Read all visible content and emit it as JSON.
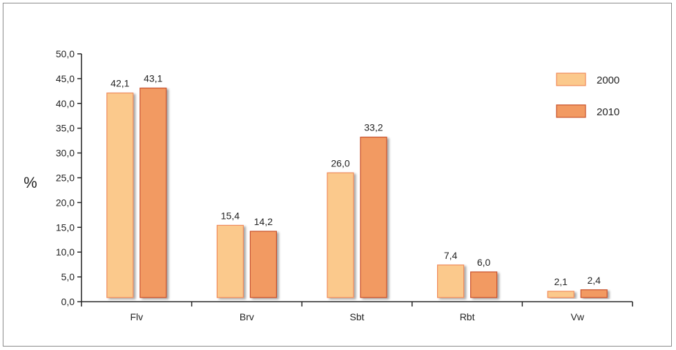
{
  "chart_data": {
    "type": "bar",
    "ylabel": "%",
    "xlabel": "",
    "title": "",
    "ylim": [
      0,
      50
    ],
    "ytick_step": 5,
    "ytick_labels": [
      "0,0",
      "5,0",
      "10,0",
      "15,0",
      "20,0",
      "25,0",
      "30,0",
      "35,0",
      "40,0",
      "45,0",
      "50,0"
    ],
    "categories": [
      "Flv",
      "Brv",
      "Sbt",
      "Rbt",
      "Vw"
    ],
    "series": [
      {
        "name": "2000",
        "color": "#fbc98c",
        "edge": "#f08a5a",
        "values": [
          42.1,
          15.4,
          26.0,
          7.4,
          2.1
        ],
        "labels": [
          "42,1",
          "15,4",
          "26,0",
          "7,4",
          "2,1"
        ]
      },
      {
        "name": "2010",
        "color": "#f29a62",
        "edge": "#c8502a",
        "values": [
          43.1,
          14.2,
          33.2,
          6.0,
          2.4
        ],
        "labels": [
          "43,1",
          "14,2",
          "33,2",
          "6,0",
          "2,4"
        ]
      }
    ],
    "legend": "top-right",
    "grid": false
  }
}
